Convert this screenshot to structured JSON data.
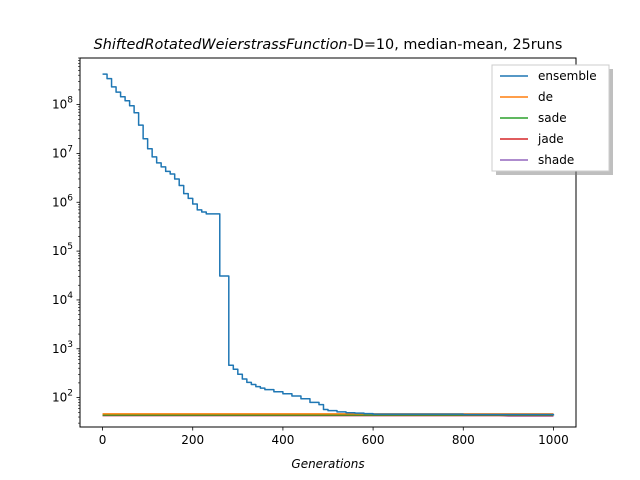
{
  "chart_data": {
    "type": "line",
    "title_italic": "ShiftedRotatedWeierstrassFunction",
    "title_rest": "-D=10, median-mean, 25runs",
    "xlabel": "Generations",
    "ylabel": "",
    "xlim": [
      -50,
      1050
    ],
    "ylim": [
      25,
      900000000
    ],
    "yscale": "log",
    "x_ticks": [
      0,
      200,
      400,
      600,
      800,
      1000
    ],
    "x_tick_labels": [
      "0",
      "200",
      "400",
      "600",
      "800",
      "1000"
    ],
    "y_ticks": [
      100,
      1000,
      10000,
      100000,
      1000000,
      10000000,
      100000000
    ],
    "y_tick_base": "10",
    "y_tick_exponents": [
      "2",
      "3",
      "4",
      "5",
      "6",
      "7",
      "8"
    ],
    "grid": false,
    "legend_position": "top-right",
    "series": [
      {
        "name": "ensemble",
        "color": "#1f77b4",
        "step": true,
        "x": [
          0,
          10,
          20,
          30,
          40,
          50,
          60,
          70,
          80,
          90,
          100,
          110,
          120,
          130,
          140,
          150,
          160,
          170,
          180,
          190,
          200,
          210,
          220,
          230,
          260,
          280,
          290,
          300,
          310,
          320,
          330,
          340,
          350,
          360,
          380,
          400,
          420,
          440,
          460,
          480,
          490,
          500,
          520,
          540,
          560,
          580,
          600,
          800,
          1000
        ],
        "y": [
          420000000,
          340000000,
          230000000,
          180000000,
          145000000,
          120000000,
          95000000,
          68000000,
          38000000,
          20000000,
          12500000,
          8500000,
          6400000,
          5300000,
          4300000,
          3800000,
          3000000,
          2200000,
          1500000,
          1200000,
          920000,
          700000,
          630000,
          580000,
          31000,
          460,
          380,
          300,
          240,
          205,
          185,
          168,
          156,
          146,
          132,
          120,
          108,
          95,
          80,
          72,
          57,
          54,
          51,
          49,
          48,
          47,
          46,
          45,
          43
        ]
      },
      {
        "name": "de",
        "color": "#ff7f0e",
        "step": false,
        "x": [
          0,
          1000
        ],
        "y": [
          46.5,
          46.5
        ]
      },
      {
        "name": "sade",
        "color": "#2ca02c",
        "step": false,
        "x": [
          0,
          1000
        ],
        "y": [
          44,
          44
        ]
      },
      {
        "name": "jade",
        "color": "#d62728",
        "step": false,
        "x": [
          0,
          1000
        ],
        "y": [
          43,
          43
        ]
      },
      {
        "name": "shade",
        "color": "#9467bd",
        "step": false,
        "x": [
          0,
          880,
          900,
          1000
        ],
        "y": [
          43,
          43,
          42,
          42
        ]
      }
    ]
  }
}
